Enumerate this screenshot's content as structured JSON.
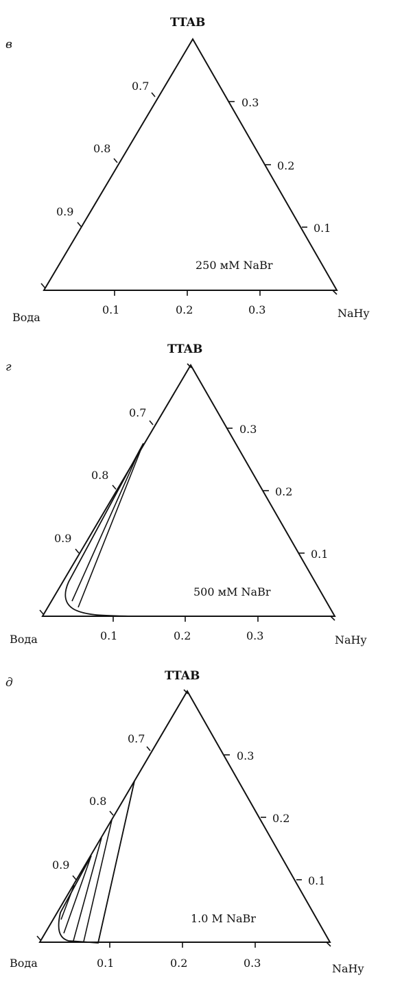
{
  "panels": [
    {
      "letter": "в",
      "top_vertex": "TTAB",
      "left_vertex": "Вода",
      "right_vertex": "NaHy",
      "condition": "250 мМ NaBr",
      "left_edge_ticks": [
        "0.7",
        "0.8",
        "0.9"
      ],
      "right_edge_ticks": [
        "0.3",
        "0.2",
        "0.1"
      ],
      "bottom_edge_ticks": [
        "0.1",
        "0.2",
        "0.3"
      ]
    },
    {
      "letter": "г",
      "top_vertex": "TTAB",
      "left_vertex": "Вода",
      "right_vertex": "NaHy",
      "condition": "500 мМ NaBr",
      "left_edge_ticks": [
        "0.7",
        "0.8",
        "0.9"
      ],
      "right_edge_ticks": [
        "0.3",
        "0.2",
        "0.1"
      ],
      "bottom_edge_ticks": [
        "0.1",
        "0.2",
        "0.3"
      ]
    },
    {
      "letter": "д",
      "top_vertex": "TTAB",
      "left_vertex": "Вода",
      "right_vertex": "NaHy",
      "condition": "1.0 M NaBr",
      "left_edge_ticks": [
        "0.7",
        "0.8",
        "0.9"
      ],
      "right_edge_ticks": [
        "0.3",
        "0.2",
        "0.1"
      ],
      "bottom_edge_ticks": [
        "0.1",
        "0.2",
        "0.3"
      ]
    }
  ]
}
